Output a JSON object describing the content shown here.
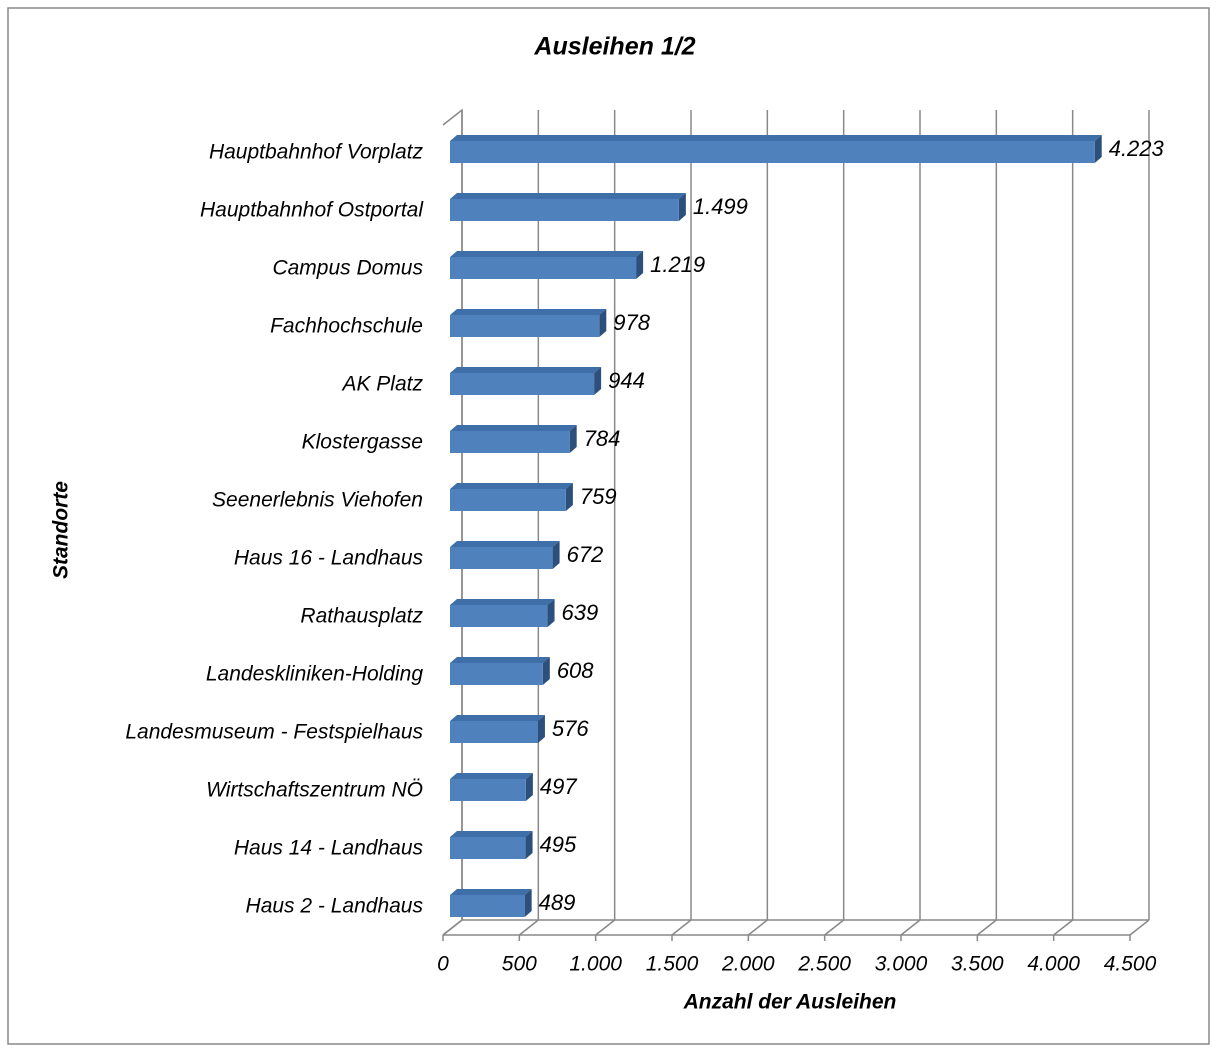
{
  "chart_data": {
    "type": "bar",
    "orientation": "horizontal",
    "title": "Ausleihen 1/2",
    "x_label": "Anzahl der Ausleihen",
    "y_label": "Standorte",
    "categories": [
      "Hauptbahnhof Vorplatz",
      "Hauptbahnhof Ostportal",
      "Campus Domus",
      "Fachhochschule",
      "AK Platz",
      "Klostergasse",
      "Seenerlebnis Viehofen",
      "Haus 16 - Landhaus",
      "Rathausplatz",
      "Landeskliniken-Holding",
      "Landesmuseum - Festspielhaus",
      "Wirtschaftszentrum NÖ",
      "Haus 14 - Landhaus",
      "Haus 2 - Landhaus"
    ],
    "values": [
      4223,
      1499,
      1219,
      978,
      944,
      784,
      759,
      672,
      639,
      608,
      576,
      497,
      495,
      489
    ],
    "value_labels": [
      "4.223",
      "1.499",
      "1.219",
      "978",
      "944",
      "784",
      "759",
      "672",
      "639",
      "608",
      "576",
      "497",
      "495",
      "489"
    ],
    "color": "#4f81bd",
    "xlim": [
      0,
      4500
    ],
    "xticks": [
      0,
      500,
      {
        "value": 1000,
        "label": "1.000"
      },
      {
        "value": 1500,
        "label": "1.500"
      },
      {
        "value": 2000,
        "label": "2.000"
      },
      {
        "value": 2500,
        "label": "2.500"
      },
      {
        "value": 3000,
        "label": "3.000"
      },
      {
        "value": 3500,
        "label": "3.500"
      },
      {
        "value": 4000,
        "label": "4.000"
      },
      {
        "value": 4500,
        "label": "4.500"
      }
    ],
    "grid": true
  }
}
